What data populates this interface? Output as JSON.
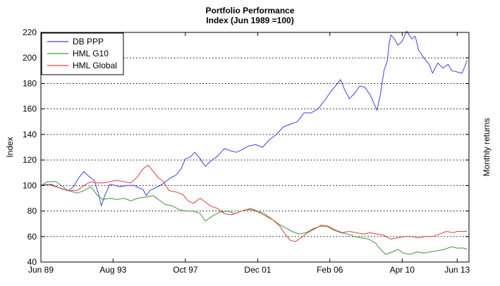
{
  "chart_data": {
    "type": "line",
    "title": "Portfolio Performance",
    "subtitle": "Index (Jun 1989 =100)",
    "ylabel": "Index",
    "ylabel_right": "Monthly returns",
    "x_ticks": [
      "Jun 89",
      "Aug 93",
      "Oct 97",
      "Dec 01",
      "Feb 06",
      "Apr 10",
      "Jun 13"
    ],
    "x_tick_years": [
      1989.42,
      1993.58,
      1997.75,
      2001.92,
      2006.08,
      2010.25,
      2013.42
    ],
    "xlim": [
      1989.42,
      2014.1
    ],
    "ylim": [
      40,
      220
    ],
    "y_ticks": [
      40,
      60,
      80,
      100,
      120,
      140,
      160,
      180,
      200,
      220
    ],
    "grid": "horizontal-dotted",
    "legend_position": "top-left",
    "series": [
      {
        "name": "DB PPP",
        "color": "#4040e0",
        "points": [
          [
            1989.42,
            100
          ],
          [
            1990.0,
            101
          ],
          [
            1990.5,
            98
          ],
          [
            1991.0,
            96
          ],
          [
            1991.3,
            99
          ],
          [
            1991.6,
            106
          ],
          [
            1991.9,
            111
          ],
          [
            1992.2,
            107
          ],
          [
            1992.5,
            104
          ],
          [
            1992.75,
            93
          ],
          [
            1992.9,
            84
          ],
          [
            1993.1,
            92
          ],
          [
            1993.4,
            101
          ],
          [
            1993.7,
            100
          ],
          [
            1994.0,
            99
          ],
          [
            1994.4,
            100
          ],
          [
            1994.8,
            100
          ],
          [
            1995.1,
            98
          ],
          [
            1995.3,
            97
          ],
          [
            1995.5,
            92
          ],
          [
            1995.7,
            96
          ],
          [
            1996.0,
            98
          ],
          [
            1996.3,
            100
          ],
          [
            1996.6,
            103
          ],
          [
            1996.9,
            106
          ],
          [
            1997.2,
            108
          ],
          [
            1997.5,
            113
          ],
          [
            1997.75,
            121
          ],
          [
            1998.0,
            122
          ],
          [
            1998.3,
            126
          ],
          [
            1998.6,
            121
          ],
          [
            1998.9,
            115
          ],
          [
            1999.2,
            119
          ],
          [
            1999.6,
            123
          ],
          [
            2000.0,
            129
          ],
          [
            2000.4,
            127
          ],
          [
            2000.7,
            126
          ],
          [
            2001.0,
            128
          ],
          [
            2001.4,
            131
          ],
          [
            2001.8,
            132
          ],
          [
            2002.2,
            130
          ],
          [
            2002.6,
            136
          ],
          [
            2003.0,
            140
          ],
          [
            2003.4,
            146
          ],
          [
            2003.8,
            148
          ],
          [
            2004.2,
            150
          ],
          [
            2004.6,
            157
          ],
          [
            2005.0,
            157
          ],
          [
            2005.4,
            160
          ],
          [
            2005.8,
            167
          ],
          [
            2006.1,
            173
          ],
          [
            2006.4,
            178
          ],
          [
            2006.7,
            183
          ],
          [
            2006.9,
            176
          ],
          [
            2007.2,
            168
          ],
          [
            2007.5,
            172
          ],
          [
            2007.8,
            178
          ],
          [
            2008.1,
            177
          ],
          [
            2008.4,
            171
          ],
          [
            2008.6,
            165
          ],
          [
            2008.8,
            159
          ],
          [
            2009.0,
            172
          ],
          [
            2009.2,
            190
          ],
          [
            2009.4,
            198
          ],
          [
            2009.5,
            212
          ],
          [
            2009.6,
            218
          ],
          [
            2009.8,
            215
          ],
          [
            2010.0,
            210
          ],
          [
            2010.25,
            213
          ],
          [
            2010.5,
            221
          ],
          [
            2010.8,
            215
          ],
          [
            2011.0,
            217
          ],
          [
            2011.2,
            206
          ],
          [
            2011.5,
            200
          ],
          [
            2011.8,
            195
          ],
          [
            2012.0,
            188
          ],
          [
            2012.3,
            196
          ],
          [
            2012.6,
            192
          ],
          [
            2012.9,
            195
          ],
          [
            2013.1,
            190
          ],
          [
            2013.42,
            189
          ],
          [
            2013.7,
            188
          ],
          [
            2014.0,
            198
          ]
        ]
      },
      {
        "name": "HML G10",
        "color": "#3a9a3a",
        "points": [
          [
            1989.42,
            100
          ],
          [
            1989.8,
            103
          ],
          [
            1990.3,
            103
          ],
          [
            1990.7,
            99
          ],
          [
            1991.0,
            96
          ],
          [
            1991.5,
            94
          ],
          [
            1991.9,
            96
          ],
          [
            1992.3,
            99
          ],
          [
            1992.7,
            92
          ],
          [
            1993.0,
            89
          ],
          [
            1993.4,
            90
          ],
          [
            1993.8,
            89
          ],
          [
            1994.2,
            90
          ],
          [
            1994.6,
            88
          ],
          [
            1995.0,
            90
          ],
          [
            1995.5,
            91
          ],
          [
            1995.9,
            92
          ],
          [
            1996.2,
            89
          ],
          [
            1996.6,
            85
          ],
          [
            1997.0,
            84
          ],
          [
            1997.4,
            81
          ],
          [
            1997.8,
            80
          ],
          [
            1998.2,
            80
          ],
          [
            1998.6,
            78
          ],
          [
            1998.9,
            72
          ],
          [
            1999.3,
            76
          ],
          [
            1999.7,
            79
          ],
          [
            2000.2,
            80
          ],
          [
            2000.6,
            78
          ],
          [
            2001.0,
            80
          ],
          [
            2001.5,
            82
          ],
          [
            2001.9,
            80
          ],
          [
            2002.3,
            78
          ],
          [
            2002.7,
            74
          ],
          [
            2003.1,
            70
          ],
          [
            2003.5,
            67
          ],
          [
            2003.9,
            64
          ],
          [
            2004.3,
            62
          ],
          [
            2004.7,
            63
          ],
          [
            2005.1,
            66
          ],
          [
            2005.5,
            68
          ],
          [
            2005.9,
            68
          ],
          [
            2006.3,
            65
          ],
          [
            2006.7,
            63
          ],
          [
            2007.1,
            62
          ],
          [
            2007.5,
            60
          ],
          [
            2007.9,
            59
          ],
          [
            2008.3,
            58
          ],
          [
            2008.7,
            55
          ],
          [
            2009.0,
            50
          ],
          [
            2009.3,
            46
          ],
          [
            2009.7,
            48
          ],
          [
            2010.0,
            50
          ],
          [
            2010.3,
            47
          ],
          [
            2010.7,
            46
          ],
          [
            2011.1,
            48
          ],
          [
            2011.5,
            47
          ],
          [
            2011.9,
            48
          ],
          [
            2012.3,
            49
          ],
          [
            2012.7,
            50
          ],
          [
            2013.1,
            52
          ],
          [
            2013.42,
            51
          ],
          [
            2013.8,
            51
          ],
          [
            2014.0,
            50
          ]
        ]
      },
      {
        "name": "HML Global",
        "color": "#e04040",
        "points": [
          [
            1989.42,
            100
          ],
          [
            1989.8,
            101
          ],
          [
            1990.3,
            99
          ],
          [
            1990.7,
            97
          ],
          [
            1991.0,
            96
          ],
          [
            1991.5,
            96
          ],
          [
            1991.9,
            100
          ],
          [
            1992.3,
            103
          ],
          [
            1992.7,
            102
          ],
          [
            1993.0,
            102
          ],
          [
            1993.4,
            103
          ],
          [
            1993.8,
            104
          ],
          [
            1994.2,
            103
          ],
          [
            1994.6,
            102
          ],
          [
            1995.0,
            107
          ],
          [
            1995.3,
            113
          ],
          [
            1995.6,
            116
          ],
          [
            1995.9,
            111
          ],
          [
            1996.2,
            106
          ],
          [
            1996.5,
            103
          ],
          [
            1996.8,
            96
          ],
          [
            1997.2,
            95
          ],
          [
            1997.6,
            93
          ],
          [
            1997.9,
            88
          ],
          [
            1998.2,
            86
          ],
          [
            1998.6,
            90
          ],
          [
            1998.9,
            87
          ],
          [
            1999.2,
            84
          ],
          [
            1999.6,
            82
          ],
          [
            2000.0,
            78
          ],
          [
            2000.4,
            77
          ],
          [
            2000.8,
            79
          ],
          [
            2001.2,
            81
          ],
          [
            2001.6,
            81
          ],
          [
            2002.0,
            79
          ],
          [
            2002.4,
            76
          ],
          [
            2002.8,
            73
          ],
          [
            2003.2,
            68
          ],
          [
            2003.5,
            62
          ],
          [
            2003.8,
            57
          ],
          [
            2004.1,
            56
          ],
          [
            2004.4,
            59
          ],
          [
            2004.8,
            63
          ],
          [
            2005.2,
            66
          ],
          [
            2005.6,
            69
          ],
          [
            2006.0,
            68
          ],
          [
            2006.4,
            65
          ],
          [
            2006.8,
            63
          ],
          [
            2007.2,
            64
          ],
          [
            2007.6,
            63
          ],
          [
            2008.0,
            62
          ],
          [
            2008.4,
            63
          ],
          [
            2008.8,
            62
          ],
          [
            2009.2,
            61
          ],
          [
            2009.6,
            58
          ],
          [
            2010.0,
            59
          ],
          [
            2010.4,
            60
          ],
          [
            2010.8,
            60
          ],
          [
            2011.2,
            59
          ],
          [
            2011.6,
            60
          ],
          [
            2012.0,
            60
          ],
          [
            2012.4,
            62
          ],
          [
            2012.8,
            64
          ],
          [
            2013.2,
            63
          ],
          [
            2013.42,
            64
          ],
          [
            2013.8,
            64
          ],
          [
            2014.0,
            64
          ]
        ]
      }
    ]
  }
}
